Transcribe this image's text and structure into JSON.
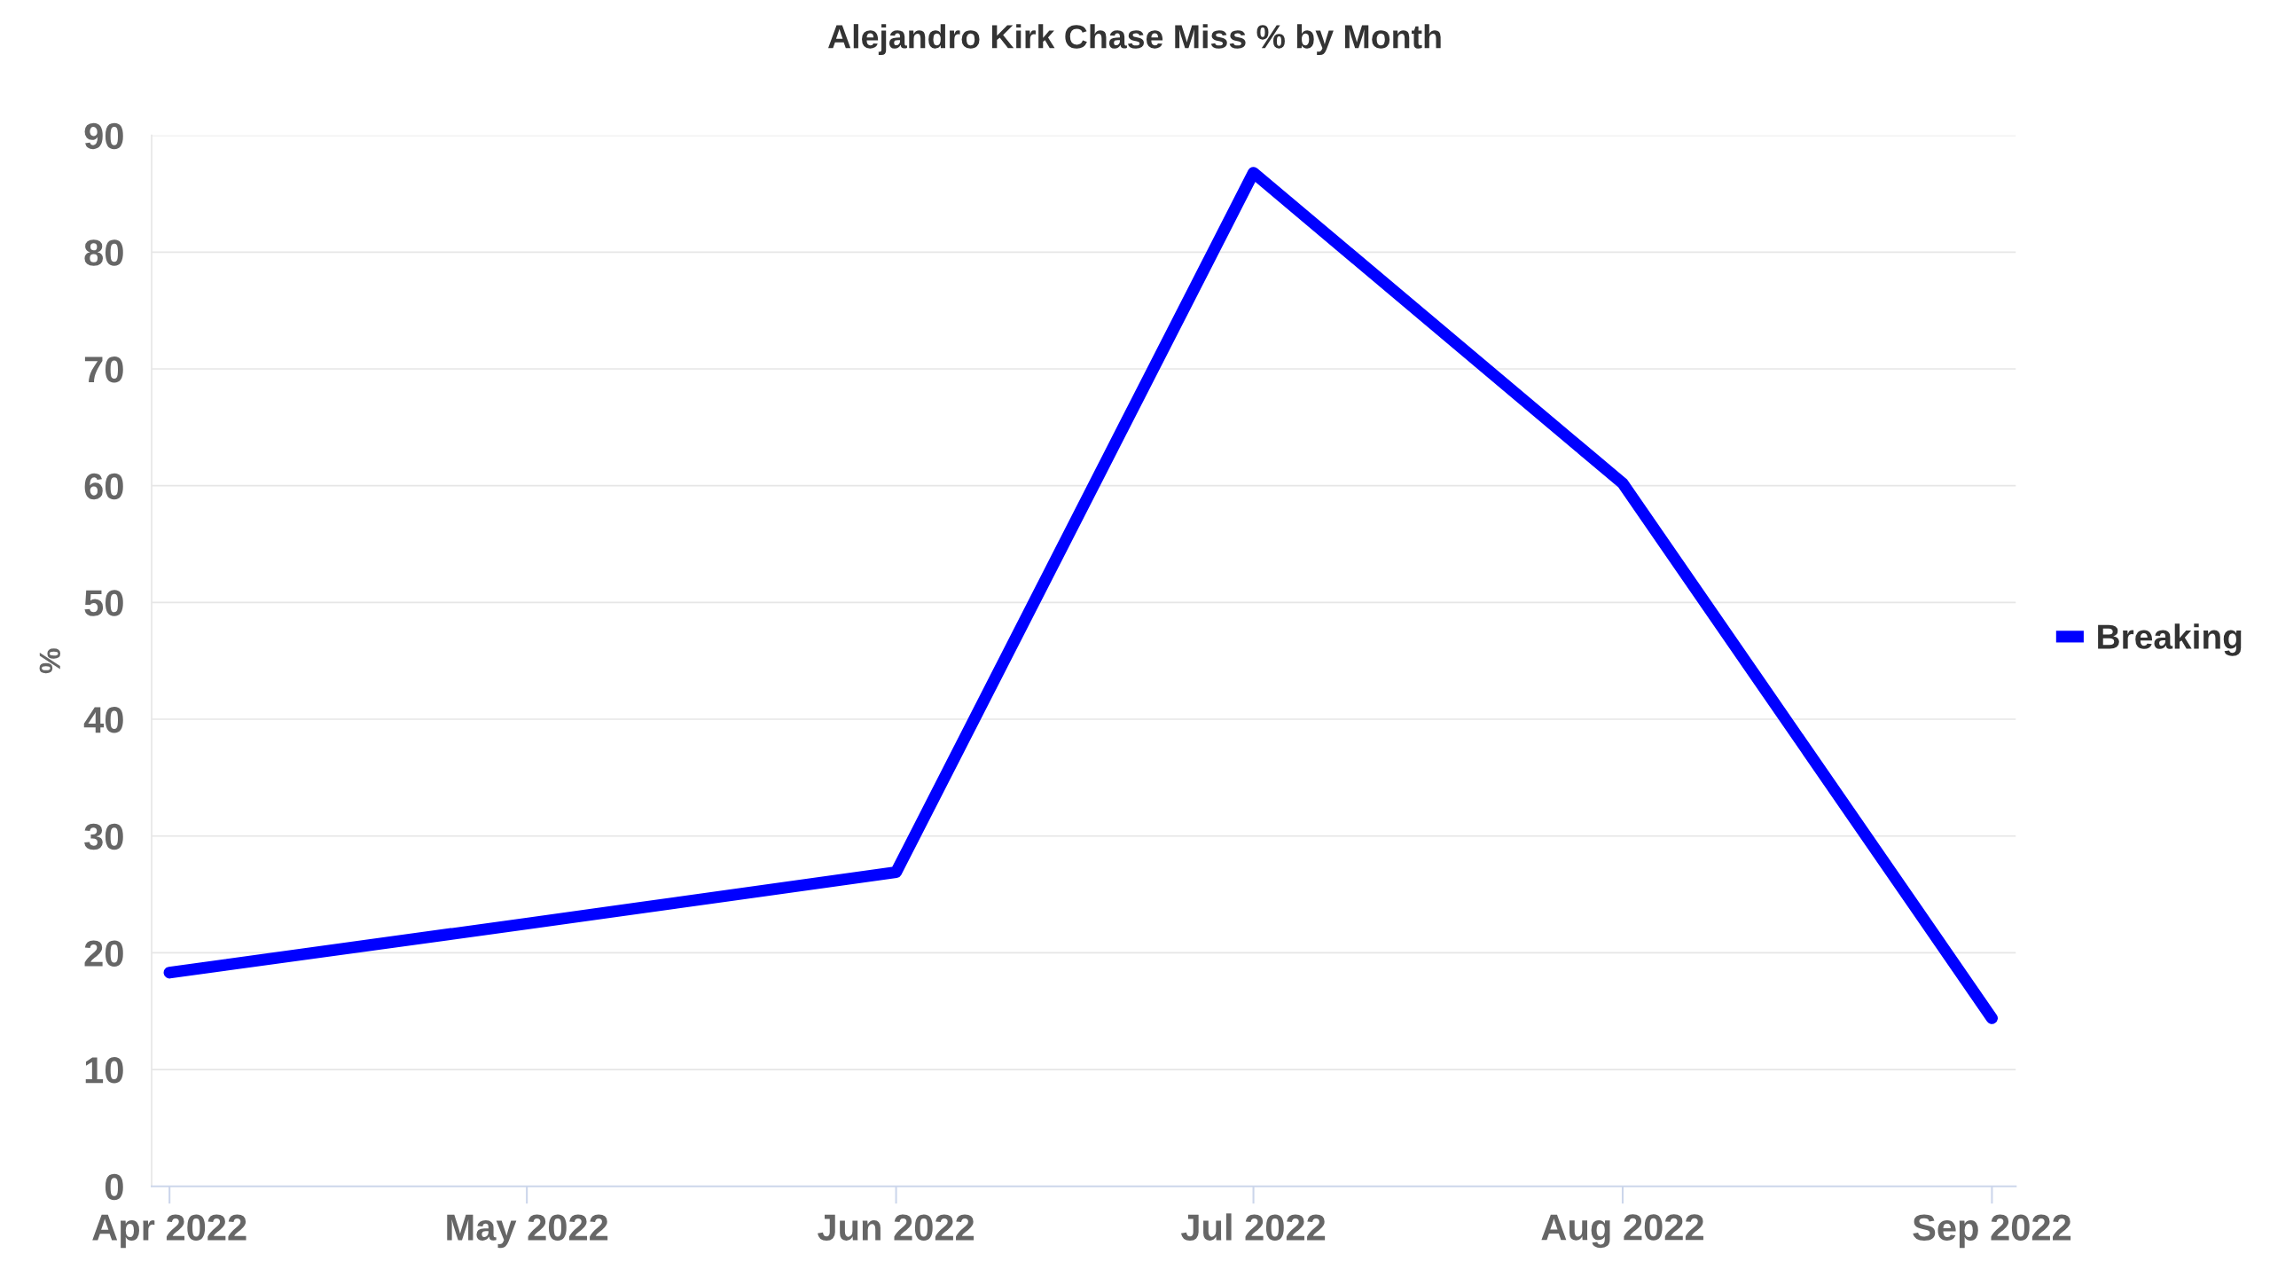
{
  "chart_data": {
    "type": "line",
    "title": "Alejandro Kirk Chase Miss % by Month",
    "ylabel": "%",
    "x": [
      "2022-04",
      "2022-05",
      "2022-06",
      "2022-07",
      "2022-08",
      "2022-09"
    ],
    "series": [
      {
        "name": "Breaking",
        "color": "#0000ff",
        "values": [
          18.3,
          22.5,
          26.9,
          86.8,
          60.2,
          14.4
        ]
      }
    ],
    "xlim": [
      "2022-03-30T12:00",
      "2022-09-03"
    ],
    "xticks": [
      {
        "value": "2022-04",
        "label": "Apr 2022"
      },
      {
        "value": "2022-05",
        "label": "May 2022"
      },
      {
        "value": "2022-06",
        "label": "Jun 2022"
      },
      {
        "value": "2022-07",
        "label": "Jul 2022"
      },
      {
        "value": "2022-08",
        "label": "Aug 2022"
      },
      {
        "value": "2022-09",
        "label": "Sep 2022"
      }
    ],
    "ylim": [
      0,
      90
    ],
    "yticks": [
      0,
      10,
      20,
      30,
      40,
      50,
      60,
      70,
      80,
      90
    ],
    "grid": "y",
    "legend": "right",
    "marker": "none",
    "line_style": "solid"
  }
}
